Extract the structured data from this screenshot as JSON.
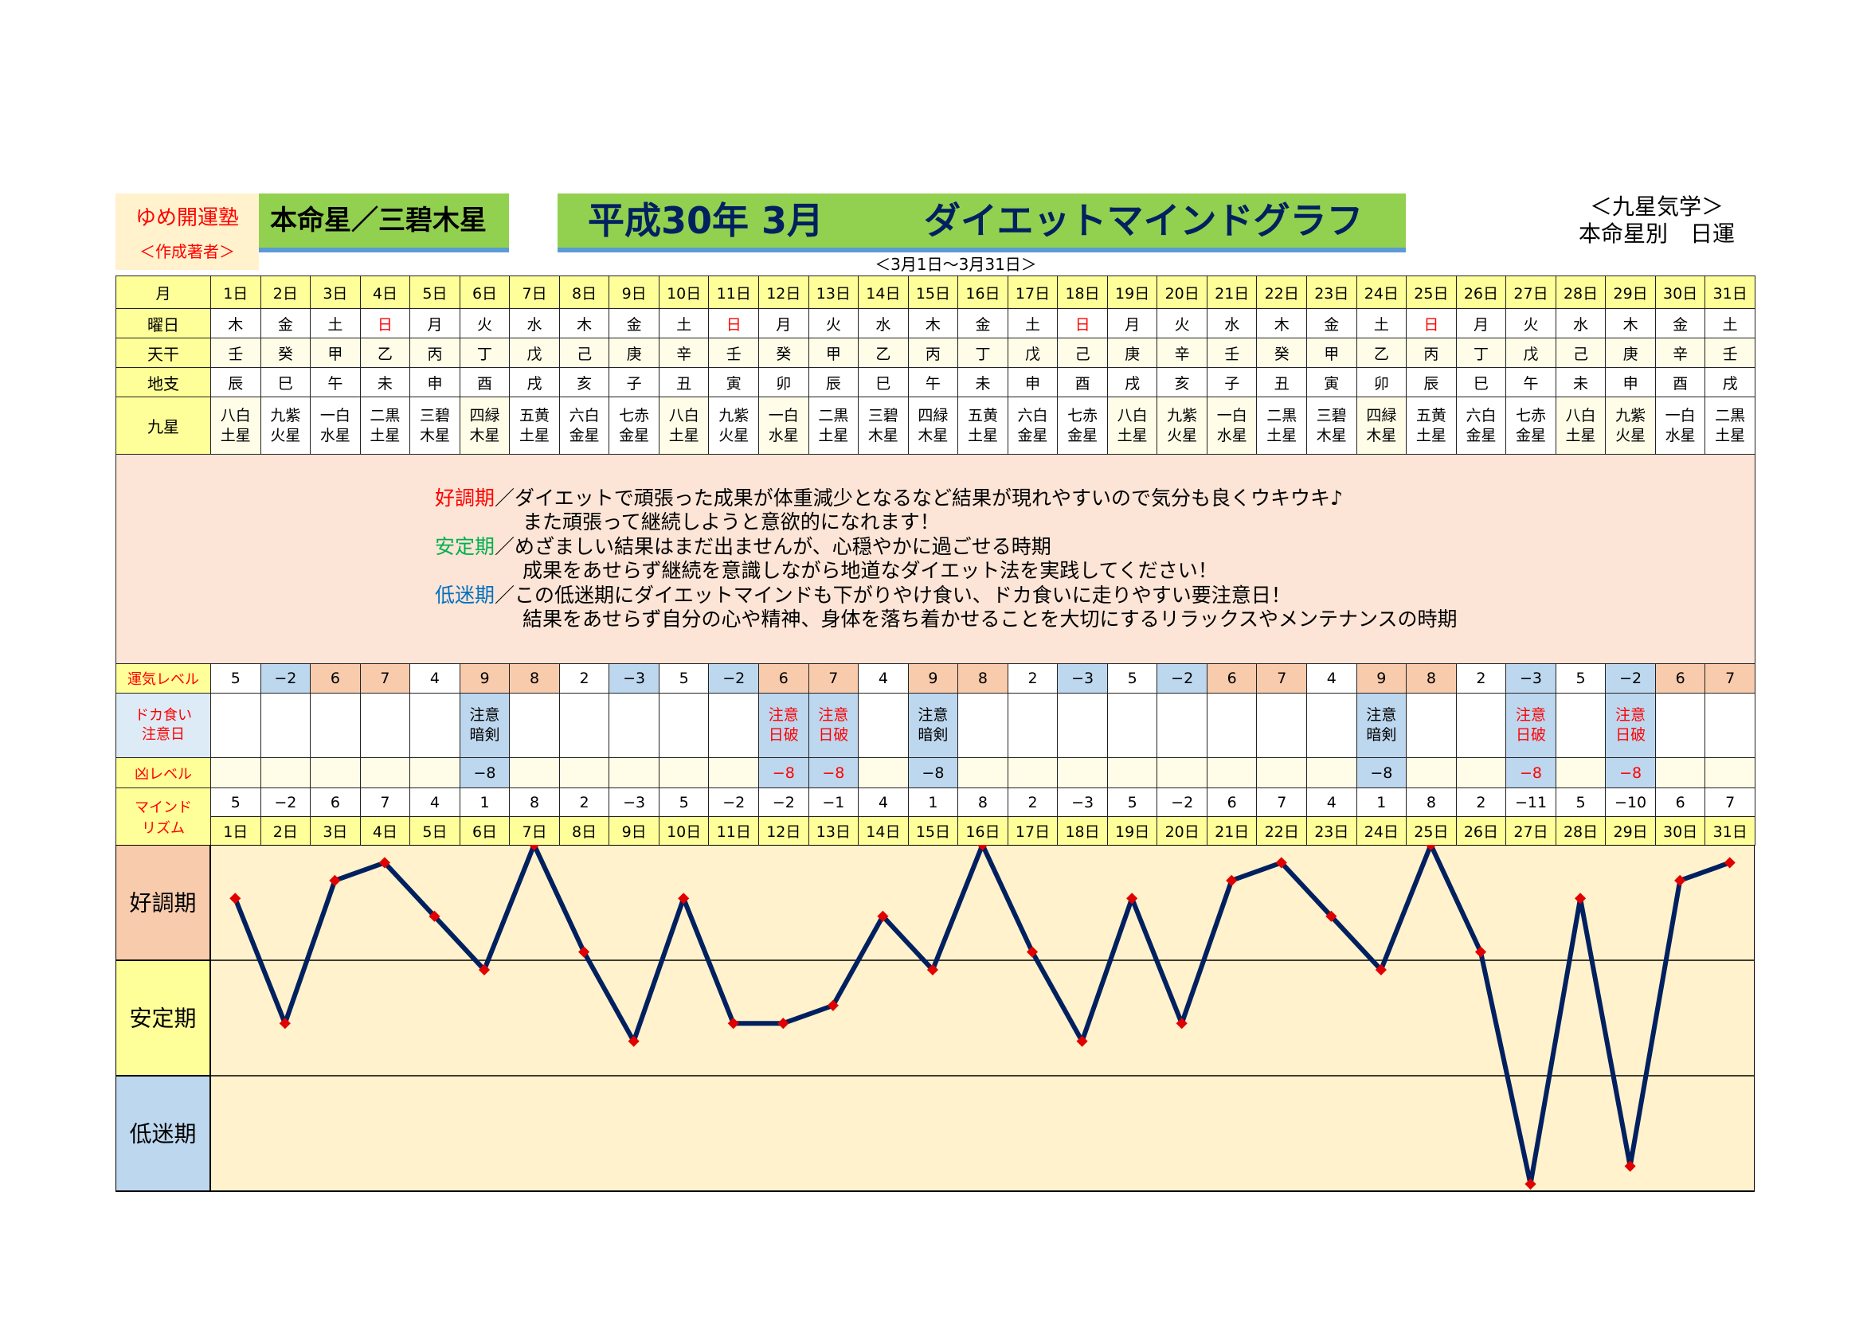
{
  "header": {
    "brand": "ゆめ開運塾",
    "author": "＜作成著者＞",
    "honmei": "本命星／三碧木星",
    "title_date": "平成30年 3月",
    "title_main": "ダイエットマインドグラフ",
    "kyusei_line1": "＜九星気学＞",
    "kyusei_line2": "本命星別　日運",
    "range": "＜3月1日～3月31日＞"
  },
  "labels": {
    "month": "月",
    "weekday": "曜日",
    "tenkan": "天干",
    "chishi": "地支",
    "kyusei": "九星",
    "unki": "運気レベル",
    "doka1": "ドカ食い",
    "doka2": "注意日",
    "kyo": "凶レベル",
    "mind1": "マインド",
    "mind2": "リズム",
    "band_good": "好調期",
    "band_stable": "安定期",
    "band_low": "低迷期"
  },
  "days": [
    "1日",
    "2日",
    "3日",
    "4日",
    "5日",
    "6日",
    "7日",
    "8日",
    "9日",
    "10日",
    "11日",
    "12日",
    "13日",
    "14日",
    "15日",
    "16日",
    "17日",
    "18日",
    "19日",
    "20日",
    "21日",
    "22日",
    "23日",
    "24日",
    "25日",
    "26日",
    "27日",
    "28日",
    "29日",
    "30日",
    "31日"
  ],
  "weekday": [
    "木",
    "金",
    "土",
    "日",
    "月",
    "火",
    "水",
    "木",
    "金",
    "土",
    "日",
    "月",
    "火",
    "水",
    "木",
    "金",
    "土",
    "日",
    "月",
    "火",
    "水",
    "木",
    "金",
    "土",
    "日",
    "月",
    "火",
    "水",
    "木",
    "金",
    "土"
  ],
  "tenkan": [
    "壬",
    "癸",
    "甲",
    "乙",
    "丙",
    "丁",
    "戊",
    "己",
    "庚",
    "辛",
    "壬",
    "癸",
    "甲",
    "乙",
    "丙",
    "丁",
    "戊",
    "己",
    "庚",
    "辛",
    "壬",
    "癸",
    "甲",
    "乙",
    "丙",
    "丁",
    "戊",
    "己",
    "庚",
    "辛",
    "壬"
  ],
  "chishi": [
    "辰",
    "巳",
    "午",
    "未",
    "申",
    "酉",
    "戌",
    "亥",
    "子",
    "丑",
    "寅",
    "卯",
    "辰",
    "巳",
    "午",
    "未",
    "申",
    "酉",
    "戌",
    "亥",
    "子",
    "丑",
    "寅",
    "卯",
    "辰",
    "巳",
    "午",
    "未",
    "申",
    "酉",
    "戌"
  ],
  "kyusei_top": [
    "八白",
    "九紫",
    "一白",
    "二黒",
    "三碧",
    "四緑",
    "五黄",
    "六白",
    "七赤",
    "八白",
    "九紫",
    "一白",
    "二黒",
    "三碧",
    "四緑",
    "五黄",
    "六白",
    "七赤",
    "八白",
    "九紫",
    "一白",
    "二黒",
    "三碧",
    "四緑",
    "五黄",
    "六白",
    "七赤",
    "八白",
    "九紫",
    "一白",
    "二黒"
  ],
  "kyusei_bottom": [
    "土星",
    "火星",
    "水星",
    "土星",
    "木星",
    "木星",
    "土星",
    "金星",
    "金星",
    "土星",
    "火星",
    "水星",
    "土星",
    "木星",
    "木星",
    "土星",
    "金星",
    "金星",
    "土星",
    "火星",
    "水星",
    "土星",
    "木星",
    "木星",
    "土星",
    "金星",
    "金星",
    "土星",
    "火星",
    "水星",
    "土星"
  ],
  "legend": {
    "good_label": "好調期",
    "good_text1": "／ダイエットで頑張った成果が体重減少となるなど結果が現れやすいので気分も良くウキウキ♪",
    "good_text2": "また頑張って継続しようと意欲的になれます！",
    "stable_label": "安定期",
    "stable_text1": "／めざましい結果はまだ出ませんが、心穏やかに過ごせる時期",
    "stable_text2": "成果をあせらず継続を意識しながら地道なダイエット法を実践してください！",
    "low_label": "低迷期",
    "low_text1": "／この低迷期にダイエットマインドも下がりやけ食い、ドカ食いに走りやすい要注意日！",
    "low_text2": "結果をあせらず自分の心や精神、身体を落ち着かせることを大切にするリラックスやメンテナンスの時期"
  },
  "unki": [
    "5",
    "-2",
    "6",
    "7",
    "4",
    "9",
    "8",
    "2",
    "-3",
    "5",
    "-2",
    "6",
    "7",
    "4",
    "9",
    "8",
    "2",
    "-3",
    "5",
    "-2",
    "6",
    "7",
    "4",
    "9",
    "8",
    "2",
    "-3",
    "5",
    "-2",
    "6",
    "7"
  ],
  "doka": {
    "6": {
      "l1": "注意",
      "l2": "暗剣",
      "red": false
    },
    "12": {
      "l1": "注意",
      "l2": "日破",
      "red": true
    },
    "13": {
      "l1": "注意",
      "l2": "日破",
      "red": true
    },
    "15": {
      "l1": "注意",
      "l2": "暗剣",
      "red": false
    },
    "24": {
      "l1": "注意",
      "l2": "暗剣",
      "red": false
    },
    "27": {
      "l1": "注意",
      "l2": "日破",
      "red": true
    },
    "29": {
      "l1": "注意",
      "l2": "日破",
      "red": true
    }
  },
  "kyo": {
    "6": "-8",
    "12": "-8",
    "13": "-8",
    "15": "-8",
    "24": "-8",
    "27": "-8",
    "29": "-8"
  },
  "chart_data": {
    "type": "line",
    "title": "ダイエットマインドグラフ",
    "x": [
      "1日",
      "2日",
      "3日",
      "4日",
      "5日",
      "6日",
      "7日",
      "8日",
      "9日",
      "10日",
      "11日",
      "12日",
      "13日",
      "14日",
      "15日",
      "16日",
      "17日",
      "18日",
      "19日",
      "20日",
      "21日",
      "22日",
      "23日",
      "24日",
      "25日",
      "26日",
      "27日",
      "28日",
      "29日",
      "30日",
      "31日"
    ],
    "series": [
      {
        "name": "マインドリズム",
        "values": [
          5,
          -2,
          6,
          7,
          4,
          1,
          8,
          2,
          -3,
          5,
          -2,
          -2,
          -1,
          4,
          1,
          8,
          2,
          -3,
          5,
          -2,
          6,
          7,
          4,
          1,
          8,
          2,
          -11,
          5,
          -10,
          6,
          7
        ]
      }
    ],
    "ylim": [
      -11.4,
      8
    ],
    "bands": [
      "好調期",
      "安定期",
      "低迷期"
    ],
    "line_color": "#002060",
    "marker_color": "#e00000"
  },
  "colors": {
    "green": "#92d050",
    "navy": "#002060",
    "yellow": "#ffff99",
    "salmon": "#f8cbad",
    "blue": "#bdd7ee",
    "red": "#ff0000"
  }
}
